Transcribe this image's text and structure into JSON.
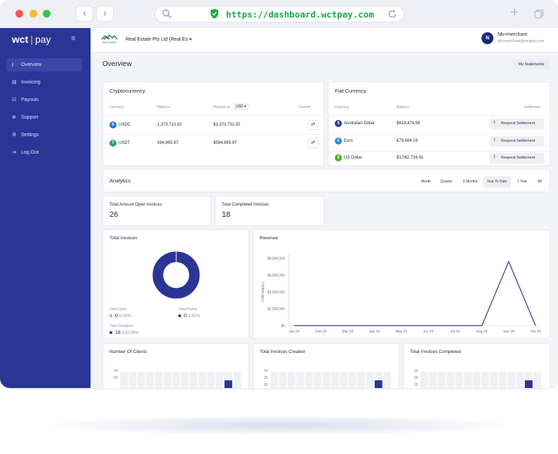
{
  "browser": {
    "url": "https://dashboard.wctpay.com",
    "back": "‹",
    "forward": "›",
    "new_tab": "+"
  },
  "sidebar": {
    "logo_brand": "wct",
    "logo_product": "pay",
    "items": [
      {
        "label": "Overview",
        "icon": "bar-chart-icon",
        "glyph": "⫾",
        "active": true
      },
      {
        "label": "Invoicing",
        "icon": "document-icon",
        "glyph": "▤",
        "active": false
      },
      {
        "label": "Payouts",
        "icon": "checkbox-icon",
        "glyph": "☑",
        "active": false
      },
      {
        "label": "Support",
        "icon": "support-icon",
        "glyph": "⊛",
        "active": false
      },
      {
        "label": "Settings",
        "icon": "gear-icon",
        "glyph": "⚙",
        "active": false
      },
      {
        "label": "Log Out",
        "icon": "logout-icon",
        "glyph": "⇥",
        "active": false
      }
    ]
  },
  "header": {
    "company_logo_text": "REAL ESTATE",
    "company": "Real Estate Pty Ltd (Real Es",
    "user_initial": "N",
    "user_name": "Nb+merchant",
    "user_email": "nb+merchant@wctpay.com"
  },
  "page": {
    "title": "Overview",
    "statements_button": "My Statements"
  },
  "crypto": {
    "title": "Cryptocurrency",
    "columns": {
      "currency": "Currency",
      "balance": "Balance",
      "balance_in": "Balance in",
      "convert": "Convert"
    },
    "selected_currency": "USD",
    "rows": [
      {
        "symbol": "USDC",
        "balance": "1,373,731.92",
        "converted": "$1,373,731.92",
        "color": "#2775ca",
        "glyph": "$"
      },
      {
        "symbol": "USDT",
        "balance": "594,695.97",
        "converted": "$594,695.97",
        "color": "#26a17b",
        "glyph": "T"
      }
    ]
  },
  "fiat": {
    "title": "Fiat Currency",
    "columns": {
      "currency": "Currency",
      "balance": "Balance",
      "settlement": "Settlement"
    },
    "action_label": "Request Settlement",
    "rows": [
      {
        "name": "Australian Dollar",
        "balance": "$814,474.58",
        "color": "#2a3596",
        "glyph": "$"
      },
      {
        "name": "Euro",
        "balance": "€79,684.19",
        "color": "#1e88e5",
        "glyph": "€"
      },
      {
        "name": "US Dollar",
        "balance": "$1,062,734.91",
        "color": "#43b02a",
        "glyph": "$"
      }
    ]
  },
  "analytics": {
    "title": "Analytics",
    "filters": [
      "Month",
      "Quarter",
      "6 Months",
      "Year To Date",
      "1 Year",
      "All"
    ],
    "active_filter": "Year To Date"
  },
  "stats": {
    "open_label": "Total Amount Open Invoices",
    "open_value": "26",
    "completed_label": "Total Completed Invoices",
    "completed_value": "18"
  },
  "total_invoices": {
    "title": "Total Invoices",
    "legend": [
      {
        "label": "Total Open",
        "value": "0",
        "pct": "0.00%",
        "color": "#7fb6e8"
      },
      {
        "label": "Total Partial",
        "value": "0",
        "pct": "0.00%",
        "color": "#2a3596"
      },
      {
        "label": "Total Complete",
        "value": "18",
        "pct": "100.00%",
        "color": "#2a3596"
      }
    ],
    "donut_color": "#2a3596"
  },
  "chart_data": [
    {
      "type": "line",
      "title": "Revenue",
      "ylabel": "USD (equiv.)",
      "categories": [
        "Jan 24",
        "Feb 24",
        "Mar 24",
        "Apr 24",
        "May 24",
        "Jun 24",
        "Jul 24",
        "Aug 24",
        "Sep 24",
        "Oct 24"
      ],
      "yticks": [
        "$0",
        "$2,000,000",
        "$4,000,000",
        "$6,000,000",
        "$8,000,000"
      ],
      "ylim": [
        0,
        8000000
      ],
      "values": [
        0,
        0,
        0,
        0,
        0,
        0,
        0,
        0,
        7600000,
        0
      ],
      "color": "#2a3596"
    },
    {
      "type": "bar",
      "title": "Number Of Clients",
      "yticks": [
        "24",
        "20"
      ]
    },
    {
      "type": "bar",
      "title": "Total Invoices Created",
      "yticks": [
        "30",
        "25",
        "20"
      ]
    },
    {
      "type": "bar",
      "title": "Total Invoices Completed",
      "yticks": [
        "22",
        "20",
        "15"
      ]
    }
  ]
}
